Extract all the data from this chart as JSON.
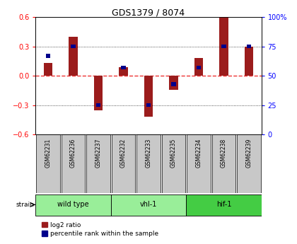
{
  "title": "GDS1379 / 8074",
  "samples": [
    "GSM62231",
    "GSM62236",
    "GSM62237",
    "GSM62232",
    "GSM62233",
    "GSM62235",
    "GSM62234",
    "GSM62238",
    "GSM62239"
  ],
  "log2_ratio": [
    0.13,
    0.4,
    -0.35,
    0.09,
    -0.42,
    -0.14,
    0.18,
    0.6,
    0.3
  ],
  "percentile": [
    67,
    75,
    25,
    57,
    25,
    43,
    57,
    75,
    75
  ],
  "groups": [
    {
      "label": "wild type",
      "start": 0,
      "end": 3,
      "color": "#99EE99"
    },
    {
      "label": "vhl-1",
      "start": 3,
      "end": 6,
      "color": "#99EE99"
    },
    {
      "label": "hif-1",
      "start": 6,
      "end": 9,
      "color": "#44CC44"
    }
  ],
  "ylim": [
    -0.6,
    0.6
  ],
  "yticks_left": [
    -0.6,
    -0.3,
    0.0,
    0.3,
    0.6
  ],
  "yticks_right": [
    0,
    25,
    50,
    75,
    100
  ],
  "bar_color": "#9B1C1C",
  "percentile_color": "#00008B",
  "zero_line_color": "#EE3333",
  "grid_color": "#222222",
  "bg_color": "#FFFFFF",
  "sample_bg": "#C8C8C8",
  "bar_width": 0.35,
  "pct_bar_width": 0.18,
  "pct_bar_height": 0.04
}
